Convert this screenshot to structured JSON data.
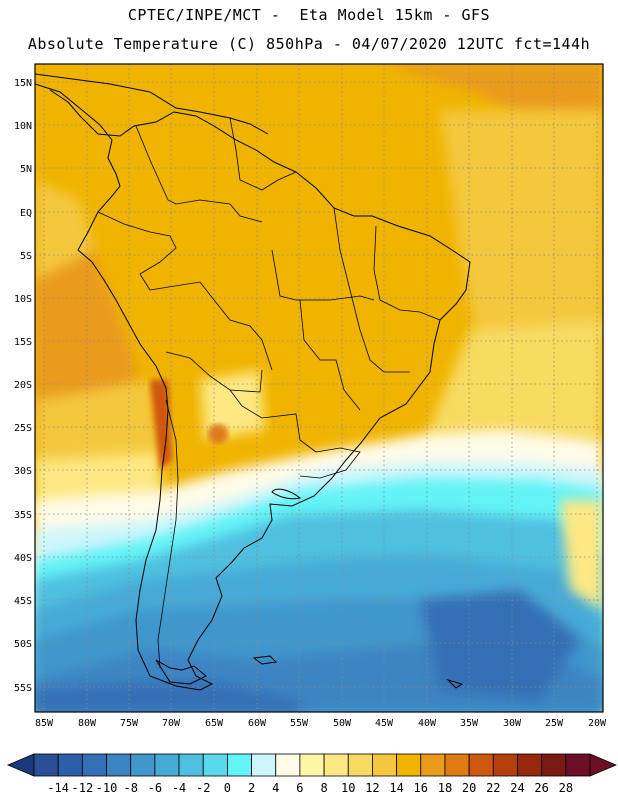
{
  "header": {
    "line1": "CPTEC/INPE/MCT -  Eta Model 15km - GFS",
    "line2": "Absolute Temperature (C) 850hPa - 04/07/2020 12UTC fct=144h"
  },
  "map": {
    "lat_labels": [
      "15N",
      "10N",
      "5N",
      "EQ",
      "5S",
      "10S",
      "15S",
      "20S",
      "25S",
      "30S",
      "35S",
      "40S",
      "45S",
      "50S",
      "55S"
    ],
    "lon_labels": [
      "85W",
      "80W",
      "75W",
      "70W",
      "65W",
      "60W",
      "55W",
      "50W",
      "45W",
      "40W",
      "35W",
      "30W",
      "25W",
      "20W"
    ],
    "ocean_base_color": "#f0b400",
    "land_outline_color": "#000000"
  },
  "colorbar": {
    "labels": [
      "-14",
      "-12",
      "-10",
      "-8",
      "-6",
      "-4",
      "-2",
      "0",
      "2",
      "4",
      "6",
      "8",
      "10",
      "12",
      "14",
      "16",
      "18",
      "20",
      "22",
      "24",
      "26",
      "28"
    ],
    "colors": [
      "#2a4f96",
      "#2d5ea8",
      "#3570b6",
      "#3c84c2",
      "#3f97cc",
      "#46aad6",
      "#4fc0e0",
      "#5ad8ec",
      "#64f3f7",
      "#cdf6fb",
      "#fffbe8",
      "#fdf6a4",
      "#fde883",
      "#f7da61",
      "#f4c73e",
      "#f0b400",
      "#e99b1c",
      "#e07a12",
      "#cf560f",
      "#b4400e",
      "#97280d",
      "#7a1a12",
      "#6d0e27"
    ],
    "left_arrow_color": "#1a3a7e",
    "right_arrow_color": "#6d0e27"
  }
}
